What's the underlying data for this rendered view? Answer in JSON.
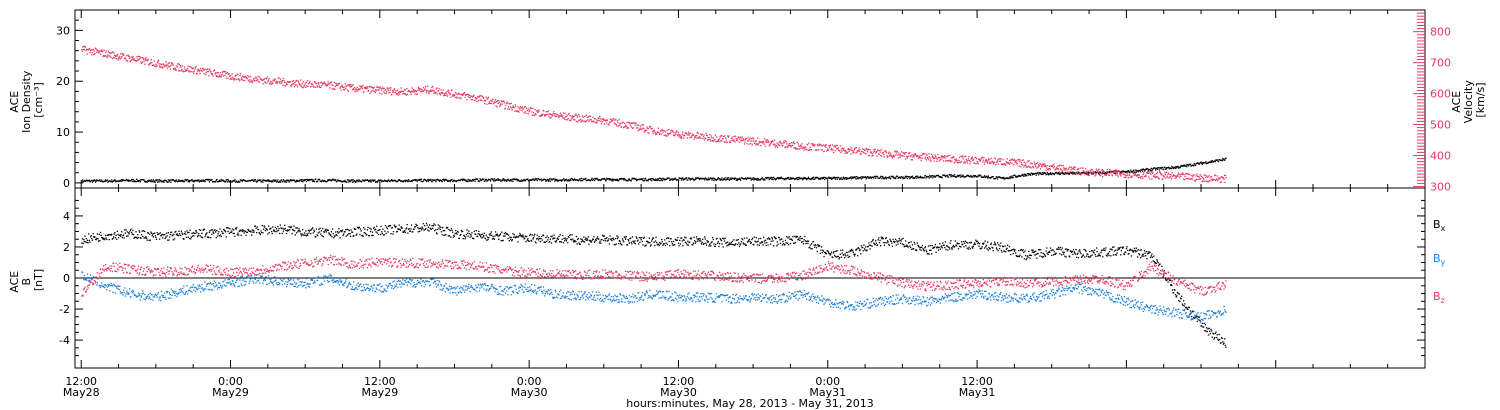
{
  "colors": {
    "density": "#000000",
    "velocity": "#e8395f",
    "bx": "#000000",
    "by": "#1a7fdd",
    "bz": "#e8395f"
  },
  "chart_data": [
    {
      "type": "scatter",
      "panel": "top",
      "ylabel_left": [
        "ACE",
        "Ion Density",
        "[cm⁻³]"
      ],
      "ylabel_right": [
        "ACE",
        "Velocity",
        "[km/s]"
      ],
      "ylim_left": [
        -1,
        34
      ],
      "ylim_right": [
        295,
        870
      ],
      "yticks_left": [
        0,
        10,
        20,
        30
      ],
      "yticks_right": [
        300,
        400,
        500,
        600,
        700,
        800
      ],
      "series": [
        {
          "axis": "left",
          "x": [
            0,
            2,
            4,
            6,
            8,
            10,
            12,
            14,
            16,
            18,
            20,
            22,
            24,
            26,
            28,
            30,
            32,
            34,
            36,
            38,
            40,
            42,
            44,
            46,
            48,
            50,
            52,
            54,
            56,
            58,
            60,
            62,
            64,
            66,
            68,
            70,
            72,
            74,
            76,
            78,
            80,
            82,
            84,
            86,
            88,
            90,
            92
          ],
          "values": [
            0.5,
            0.5,
            0.6,
            0.5,
            0.5,
            0.6,
            0.5,
            0.5,
            0.5,
            0.6,
            0.6,
            0.5,
            0.5,
            0.6,
            0.6,
            0.6,
            0.7,
            0.7,
            0.7,
            0.7,
            0.8,
            0.8,
            0.8,
            0.8,
            0.9,
            0.9,
            0.9,
            0.9,
            1.0,
            1.0,
            1.0,
            1.1,
            1.2,
            1.2,
            1.3,
            1.5,
            1.5,
            1.0,
            1.8,
            2.0,
            2.0,
            2.1,
            2.3,
            2.8,
            3.2,
            4.0,
            4.8
          ]
        },
        {
          "axis": "right",
          "x": [
            0,
            2,
            4,
            6,
            8,
            10,
            12,
            14,
            16,
            18,
            20,
            22,
            24,
            26,
            28,
            30,
            32,
            34,
            36,
            38,
            40,
            42,
            44,
            46,
            48,
            50,
            52,
            54,
            56,
            58,
            60,
            62,
            64,
            66,
            68,
            70,
            72,
            74,
            76,
            78,
            80,
            82,
            84,
            86,
            88,
            90,
            92
          ],
          "values": [
            745,
            730,
            715,
            700,
            685,
            672,
            658,
            648,
            640,
            632,
            628,
            618,
            612,
            608,
            615,
            600,
            585,
            565,
            545,
            532,
            522,
            515,
            500,
            482,
            470,
            462,
            455,
            448,
            440,
            432,
            425,
            418,
            410,
            402,
            396,
            390,
            386,
            382,
            375,
            364,
            352,
            346,
            342,
            338,
            334,
            330,
            326
          ]
        }
      ]
    },
    {
      "type": "scatter",
      "panel": "bottom",
      "ylabel_left": [
        "ACE",
        "B",
        "[nT]"
      ],
      "ylim": [
        -5.8,
        5.8
      ],
      "yticks": [
        -4,
        -2,
        0,
        2,
        4
      ],
      "series": [
        {
          "name_base": "B",
          "name_sub": "x",
          "x": [
            0,
            2,
            4,
            6,
            8,
            10,
            12,
            14,
            16,
            18,
            20,
            22,
            24,
            26,
            28,
            30,
            32,
            34,
            36,
            38,
            40,
            42,
            44,
            46,
            48,
            50,
            52,
            54,
            56,
            58,
            60,
            62,
            64,
            66,
            68,
            70,
            72,
            74,
            76,
            78,
            80,
            82,
            84,
            86,
            88,
            90,
            92
          ],
          "values": [
            2.5,
            2.8,
            2.9,
            2.7,
            2.8,
            2.9,
            3.0,
            3.1,
            3.2,
            3.0,
            2.9,
            3.0,
            3.1,
            3.2,
            3.3,
            2.9,
            2.8,
            2.7,
            2.6,
            2.6,
            2.5,
            2.5,
            2.4,
            2.4,
            2.4,
            2.4,
            2.3,
            2.4,
            2.4,
            2.5,
            1.5,
            1.6,
            2.4,
            2.3,
            1.8,
            2.2,
            2.2,
            2.0,
            1.5,
            1.8,
            1.6,
            1.7,
            1.8,
            1.5,
            -1.0,
            -3.0,
            -4.2
          ]
        },
        {
          "name_base": "B",
          "name_sub": "y",
          "x": [
            0,
            2,
            4,
            6,
            8,
            10,
            12,
            14,
            16,
            18,
            20,
            22,
            24,
            26,
            28,
            30,
            32,
            34,
            36,
            38,
            40,
            42,
            44,
            46,
            48,
            50,
            52,
            54,
            56,
            58,
            60,
            62,
            64,
            66,
            68,
            70,
            72,
            74,
            76,
            78,
            80,
            82,
            84,
            86,
            88,
            90,
            92
          ],
          "values": [
            0.2,
            -0.5,
            -1.0,
            -1.2,
            -0.8,
            -0.5,
            -0.3,
            0.0,
            -0.2,
            -0.3,
            0.0,
            -0.5,
            -0.6,
            -0.3,
            -0.2,
            -0.8,
            -0.5,
            -0.8,
            -0.6,
            -1.0,
            -1.1,
            -1.2,
            -1.3,
            -1.0,
            -1.2,
            -1.2,
            -1.3,
            -1.2,
            -1.3,
            -1.0,
            -1.5,
            -1.8,
            -1.5,
            -1.3,
            -1.5,
            -1.2,
            -1.0,
            -1.2,
            -1.3,
            -1.0,
            -0.6,
            -1.0,
            -1.5,
            -2.0,
            -2.2,
            -2.5,
            -2.0
          ]
        },
        {
          "name_base": "B",
          "name_sub": "z",
          "x": [
            0,
            2,
            4,
            6,
            8,
            10,
            12,
            14,
            16,
            18,
            20,
            22,
            24,
            26,
            28,
            30,
            32,
            34,
            36,
            38,
            40,
            42,
            44,
            46,
            48,
            50,
            52,
            54,
            56,
            58,
            60,
            62,
            64,
            66,
            68,
            70,
            72,
            74,
            76,
            78,
            80,
            82,
            84,
            86,
            88,
            90,
            92
          ],
          "values": [
            -1.0,
            0.8,
            0.6,
            0.4,
            0.5,
            0.6,
            0.4,
            0.5,
            0.8,
            1.0,
            1.2,
            0.9,
            1.1,
            1.0,
            1.0,
            0.9,
            0.8,
            0.5,
            0.4,
            0.3,
            0.2,
            0.3,
            0.2,
            0.1,
            0.3,
            0.2,
            0.1,
            0.0,
            0.0,
            0.2,
            0.8,
            0.5,
            0.1,
            -0.3,
            -0.5,
            -0.4,
            -0.3,
            -0.2,
            -0.3,
            -0.2,
            -0.1,
            0.0,
            -0.5,
            0.8,
            -0.2,
            -0.8,
            -0.4
          ]
        }
      ]
    }
  ],
  "x_axis": {
    "range_hours": [
      -0.5,
      108
    ],
    "tick_hours": [
      0,
      12,
      24,
      36,
      48,
      60,
      72,
      84,
      96
    ],
    "minor_step_hours": 3,
    "tick_time_labels": [
      "12:00",
      "0:00",
      "12:00",
      "0:00",
      "12:00",
      "0:00",
      "12:00"
    ],
    "tick_date_labels": [
      "May28",
      "May29",
      "May29",
      "May30",
      "May30",
      "May31",
      "May31"
    ],
    "title": "hours:minutes, May 28, 2013 - May 31, 2013"
  }
}
